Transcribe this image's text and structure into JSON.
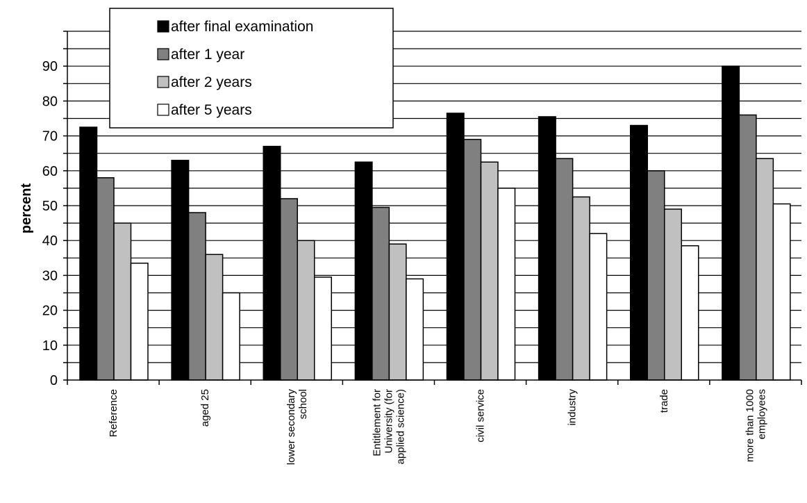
{
  "chart_data": {
    "type": "bar",
    "ylabel": "percent",
    "xlabel": "",
    "title": "",
    "ylim": [
      0,
      100
    ],
    "yticks": [
      0,
      10,
      20,
      30,
      40,
      50,
      60,
      70,
      80,
      90
    ],
    "grid": "horizontal",
    "legend_position": "top-left",
    "categories": [
      "Reference",
      "aged 25",
      "lower secondary school",
      "Entitlement for University (for applied science)",
      "civil service",
      "industry",
      "trade",
      "more than 1000 employees"
    ],
    "series": [
      {
        "name": "after final examination",
        "color": "#000000",
        "values": [
          72.5,
          63,
          67,
          62.5,
          76.5,
          75.5,
          73,
          90
        ]
      },
      {
        "name": "after 1 year",
        "color": "#808080",
        "values": [
          58,
          48,
          52,
          49.5,
          69,
          63.5,
          60,
          76
        ]
      },
      {
        "name": "after 2 years",
        "color": "#c0c0c0",
        "values": [
          45,
          36,
          40,
          39,
          62.5,
          52.5,
          49,
          63.5
        ]
      },
      {
        "name": "after 5 years",
        "color": "#ffffff",
        "values": [
          33.5,
          25,
          29.5,
          29,
          55,
          42,
          38.5,
          50.5
        ]
      }
    ]
  }
}
